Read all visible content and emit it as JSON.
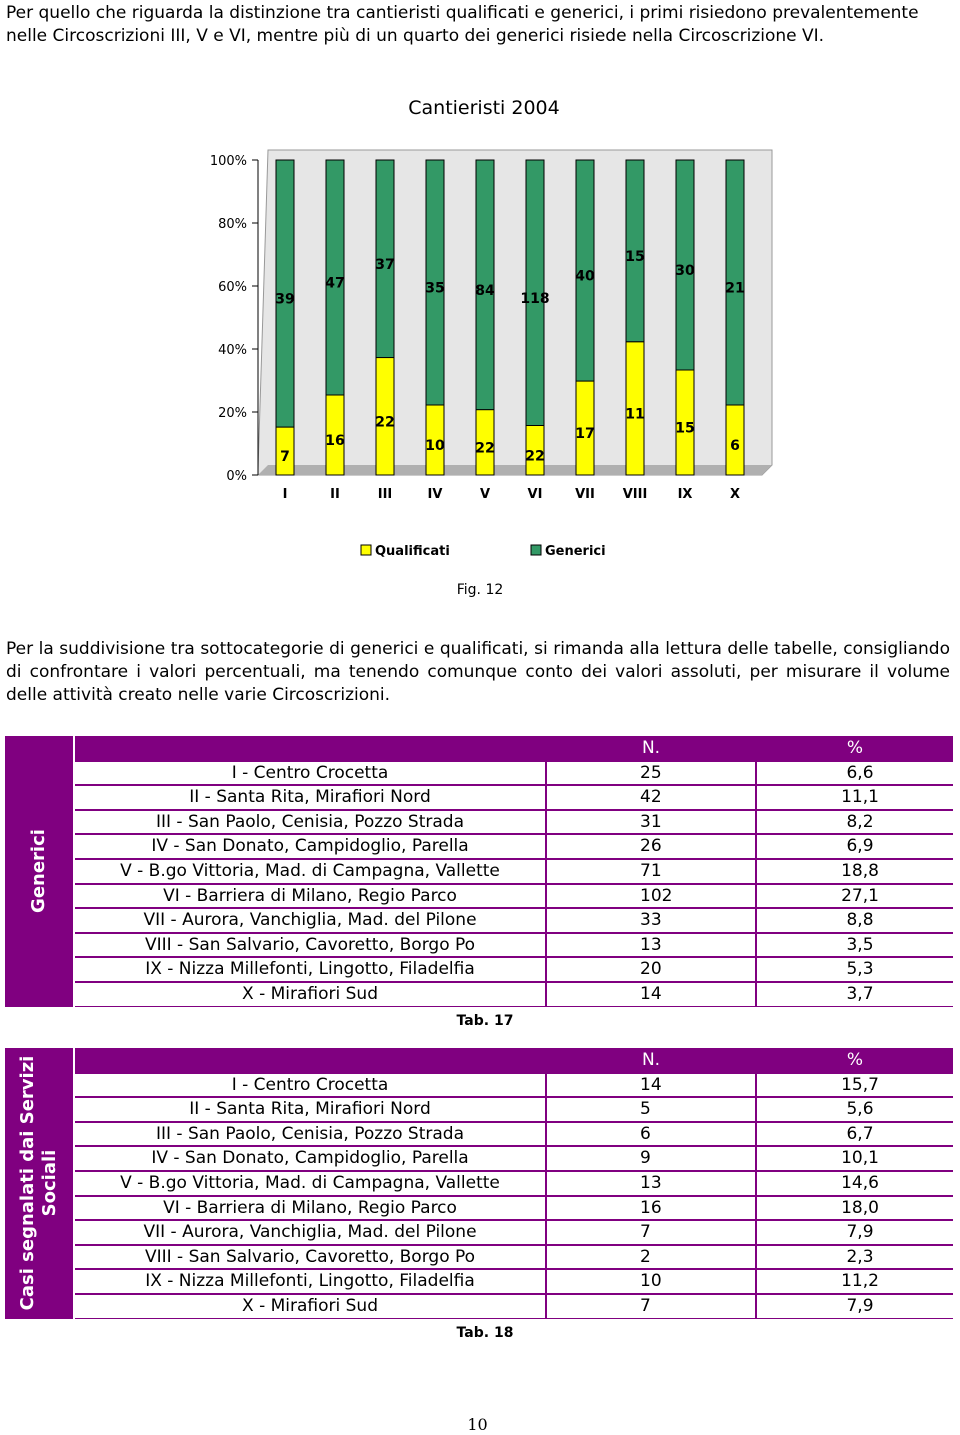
{
  "intro": "Per quello che riguarda la distinzione tra cantieristi qualificati e generici, i primi risiedono prevalentemente nelle Circoscrizioni III, V e VI, mentre più di un quarto dei generici risiede nella Circoscrizione VI.",
  "chart_data": {
    "type": "bar",
    "stacking": "percent",
    "title": "Cantieristi 2004",
    "categories": [
      "I",
      "II",
      "III",
      "IV",
      "V",
      "VI",
      "VII",
      "VIII",
      "IX",
      "X"
    ],
    "series": [
      {
        "name": "Qualificati",
        "color": "#ffff00",
        "values": [
          7,
          16,
          22,
          10,
          22,
          22,
          17,
          11,
          15,
          6
        ]
      },
      {
        "name": "Generici",
        "color": "#339966",
        "values": [
          39,
          47,
          37,
          35,
          84,
          118,
          40,
          15,
          30,
          21
        ]
      }
    ],
    "ylim": [
      0,
      100
    ],
    "yticks": [
      {
        "value": 0,
        "label": "0%"
      },
      {
        "value": 20,
        "label": "20%"
      },
      {
        "value": 40,
        "label": "40%"
      },
      {
        "value": 60,
        "label": "60%"
      },
      {
        "value": 80,
        "label": "80%"
      },
      {
        "value": 100,
        "label": "100%"
      }
    ],
    "legend": "bottom"
  },
  "figure_caption": "Fig. 12",
  "paragraph": "Per la suddivisione tra sottocategorie di generici e qualificati, si rimanda alla lettura delle tabelle, consigliando di confrontare i valori percentuali, ma tenendo comunque conto dei valori assoluti, per misurare il volume delle attività creato nelle varie Circoscrizioni.",
  "tables": [
    {
      "side_label": "Generici",
      "header": [
        "N.",
        "%"
      ],
      "rows": [
        [
          "I - Centro Crocetta",
          "25",
          "6,6"
        ],
        [
          "II - Santa Rita, Mirafiori Nord",
          "42",
          "11,1"
        ],
        [
          "III - San Paolo, Cenisia, Pozzo Strada",
          "31",
          "8,2"
        ],
        [
          "IV - San Donato, Campidoglio, Parella",
          "26",
          "6,9"
        ],
        [
          "V - B.go Vittoria, Mad. di Campagna, Vallette",
          "71",
          "18,8"
        ],
        [
          "VI - Barriera di Milano, Regio Parco",
          "102",
          "27,1"
        ],
        [
          "VII - Aurora, Vanchiglia, Mad. del Pilone",
          "33",
          "8,8"
        ],
        [
          "VIII - San Salvario, Cavoretto, Borgo Po",
          "13",
          "3,5"
        ],
        [
          "IX - Nizza Millefonti, Lingotto, Filadelfia",
          "20",
          "5,3"
        ],
        [
          "X - Mirafiori Sud",
          "14",
          "3,7"
        ]
      ],
      "caption": "Tab. 17"
    },
    {
      "side_label": "Casi segnalati dai Servizi Sociali",
      "header": [
        "N.",
        "%"
      ],
      "rows": [
        [
          "I - Centro Crocetta",
          "14",
          "15,7"
        ],
        [
          "II - Santa Rita, Mirafiori Nord",
          "5",
          "5,6"
        ],
        [
          "III - San Paolo, Cenisia, Pozzo Strada",
          "6",
          "6,7"
        ],
        [
          "IV - San Donato, Campidoglio, Parella",
          "9",
          "10,1"
        ],
        [
          "V - B.go Vittoria, Mad. di Campagna, Vallette",
          "13",
          "14,6"
        ],
        [
          "VI - Barriera di Milano, Regio Parco",
          "16",
          "18,0"
        ],
        [
          "VII - Aurora, Vanchiglia, Mad. del Pilone",
          "7",
          "7,9"
        ],
        [
          "VIII - San Salvario, Cavoretto, Borgo Po",
          "2",
          "2,3"
        ],
        [
          "IX - Nizza Millefonti, Lingotto, Filadelfia",
          "10",
          "11,2"
        ],
        [
          "X - Mirafiori Sud",
          "7",
          "7,9"
        ]
      ],
      "caption": "Tab. 18"
    }
  ],
  "page_number": "10"
}
